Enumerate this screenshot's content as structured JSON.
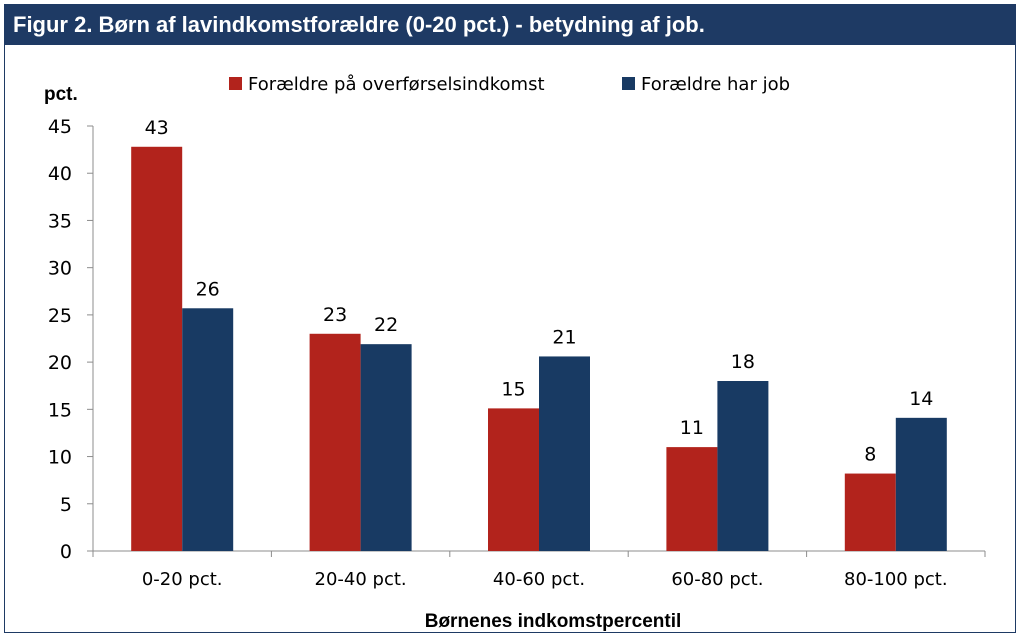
{
  "title": "Figur 2. Børn af lavindkomstforældre (0-20 pct.) - betydning af job.",
  "colors": {
    "title_bg": "#1e3a64",
    "series1": "#b2231c",
    "series2": "#183a63"
  },
  "chart_data": {
    "type": "bar",
    "title": "Figur 2. Børn af lavindkomstforældre (0-20 pct.) - betydning af job.",
    "ylabel": "pct.",
    "xlabel": "Børnenes indkomstpercentil",
    "ylim": [
      0,
      45
    ],
    "yticks": [
      0,
      5,
      10,
      15,
      20,
      25,
      30,
      35,
      40,
      45
    ],
    "categories": [
      "0-20 pct.",
      "20-40 pct.",
      "40-60 pct.",
      "60-80 pct.",
      "80-100 pct."
    ],
    "series": [
      {
        "name": "Forældre på overførselsindkomst",
        "color": "#b2231c",
        "values": [
          42.8,
          23,
          15.1,
          11,
          8.2
        ],
        "labels": [
          "43",
          "23",
          "15",
          "11",
          "8"
        ]
      },
      {
        "name": "Forældre har job",
        "color": "#183a63",
        "values": [
          25.7,
          21.9,
          20.6,
          18,
          14.1
        ],
        "labels": [
          "26",
          "22",
          "21",
          "18",
          "14"
        ]
      }
    ],
    "legend": "top",
    "grid": false
  }
}
